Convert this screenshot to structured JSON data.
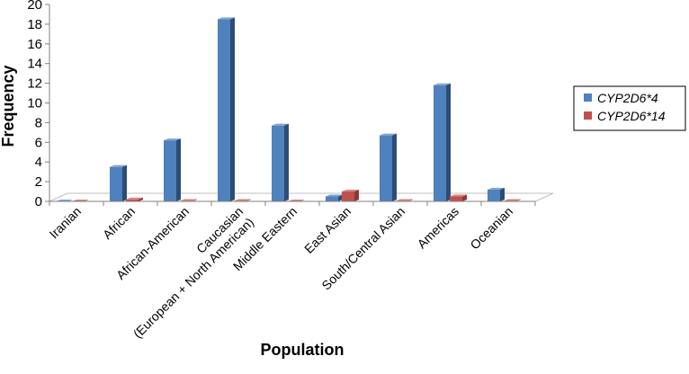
{
  "chart_data": {
    "type": "bar",
    "style": "3d-clustered-column",
    "title": "",
    "xlabel": "Population",
    "ylabel": "Frequency",
    "ylim": [
      0,
      20
    ],
    "yticks": [
      "0",
      "2",
      "4",
      "6",
      "8",
      "10",
      "12",
      "14",
      "16",
      "18",
      "20"
    ],
    "categories": [
      "Iranian",
      "African",
      "African-American",
      "Caucasian\n(European + North American)",
      "Middle Eastern",
      "East Asian",
      "South/Central Asian",
      "Americas",
      "Oceanian"
    ],
    "series": [
      {
        "name": "CYP2D6*4",
        "values": [
          0,
          3.5,
          6.2,
          18.5,
          7.7,
          0.5,
          6.7,
          11.8,
          1.2
        ]
      },
      {
        "name": "CYP2D6*14",
        "values": [
          0,
          0.2,
          0.05,
          0.05,
          0,
          1.0,
          0.05,
          0.5,
          0.05
        ]
      }
    ],
    "legend": {
      "position": "right"
    },
    "grid": false,
    "colors": {
      "CYP2D6*4": {
        "front": "#4f81bd",
        "side": "#2c4d75",
        "top": "#7fa2d4"
      },
      "CYP2D6*14": {
        "front": "#c0504d",
        "side": "#8c3836",
        "top": "#d9837f"
      },
      "floor_stroke": "#bfbfbf"
    }
  }
}
